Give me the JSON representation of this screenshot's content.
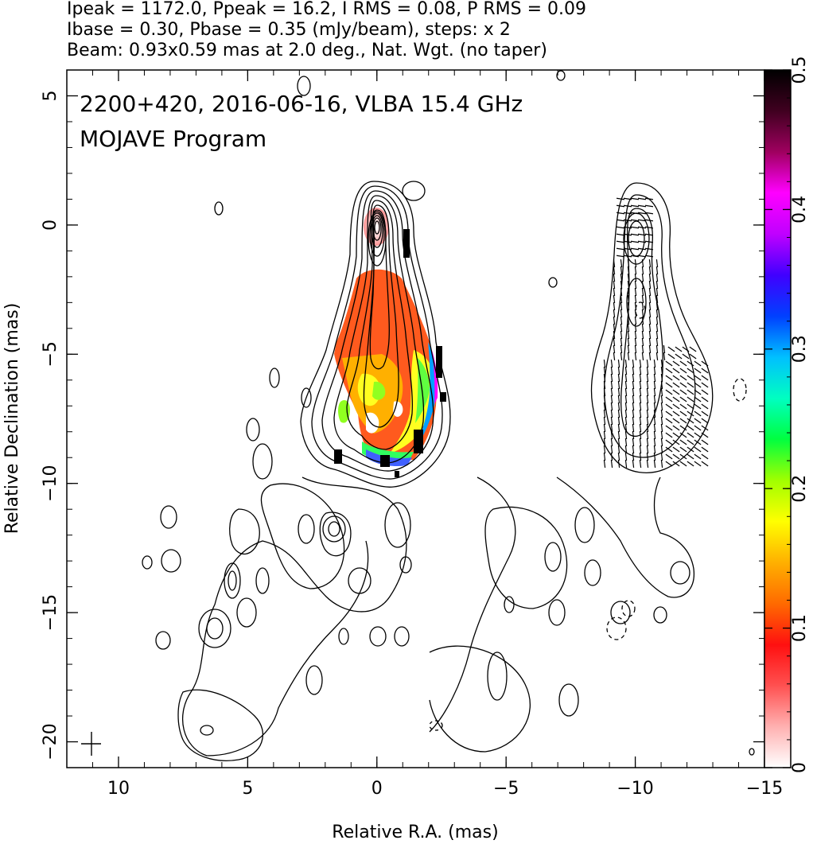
{
  "header": {
    "line1": "Ipeak = 1172.0, Ppeak = 16.2, I RMS = 0.08, P RMS = 0.09",
    "line2": "Ibase = 0.30, Pbase = 0.35 (mJy/beam), steps: x 2",
    "line3": "Beam: 0.93x0.59 mas at 2.0 deg., Nat. Wgt. (no taper)"
  },
  "chart_data": {
    "type": "heatmap",
    "title": "2200+420, 2016-06-16, VLBA 15.4 GHz",
    "subtitle": "MOJAVE Program",
    "xlabel": "Relative R.A. (mas)",
    "ylabel": "Relative Declination (mas)",
    "xlim": [
      12,
      -15
    ],
    "ylim": [
      -21,
      6
    ],
    "x_ticks": [
      10,
      5,
      0,
      -5,
      -10,
      -15
    ],
    "x_tick_labels": [
      "10",
      "5",
      "0",
      "−5",
      "−10",
      "−15"
    ],
    "y_ticks": [
      5,
      0,
      -5,
      -10,
      -15,
      -20
    ],
    "y_tick_labels": [
      "5",
      "0",
      "−5",
      "−10",
      "−15",
      "−20"
    ],
    "colorbar": {
      "range": [
        0,
        0.5
      ],
      "ticks": [
        0,
        0.1,
        0.2,
        0.3,
        0.4,
        0.5
      ],
      "tick_labels": [
        "0",
        "0.1",
        "0.2",
        "0.3",
        "0.4",
        "0.5"
      ],
      "colors": [
        "#ffffff",
        "#ffb0b0",
        "#ff5050",
        "#ff1010",
        "#ff6a00",
        "#ffb000",
        "#ffff00",
        "#a0ff00",
        "#00ff40",
        "#00ffc0",
        "#00c0ff",
        "#0040ff",
        "#4000ff",
        "#c000ff",
        "#ff00ff",
        "#a00060",
        "#400020",
        "#000000"
      ]
    },
    "contour_levels_mJy_per_beam": [
      0.3,
      0.6,
      1.2,
      2.4,
      4.8,
      9.6,
      19.2,
      38.4,
      76.8,
      153.6,
      307.2,
      614.4
    ],
    "total_intensity_peak_mJy_per_beam": 1172.0,
    "polarized_intensity_peak_mJy_per_beam": 16.2,
    "core_position_mas": [
      0,
      0
    ],
    "beam": {
      "major_mas": 0.93,
      "minor_mas": 0.59,
      "pa_deg": 2.0
    },
    "panel_offset_ra_mas": -10
  }
}
